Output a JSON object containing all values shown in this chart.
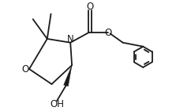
{
  "bg_color": "#ffffff",
  "fig_width": 2.23,
  "fig_height": 1.4,
  "dpi": 100,
  "line_color": "#1a1a1a",
  "lw": 1.3,
  "xlim": [
    0,
    10
  ],
  "ylim": [
    0,
    6.3
  ]
}
